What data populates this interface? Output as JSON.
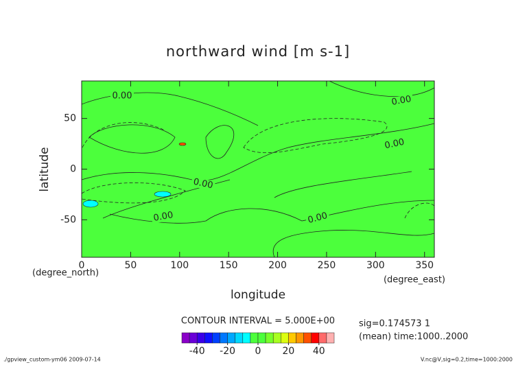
{
  "chart_data": {
    "type": "contour",
    "title": "northward wind [m s-1]",
    "x_label": "longitude",
    "y_label": "latitude",
    "x_unit": "(degree_east)",
    "y_unit": "(degree_north)",
    "xlim": [
      0,
      360
    ],
    "ylim": [
      -87,
      87
    ],
    "xticks": [
      0,
      50,
      100,
      150,
      200,
      250,
      300,
      350
    ],
    "yticks": [
      -50,
      0,
      50
    ],
    "contour_labels": [
      "0.00",
      "0.00",
      "0.00",
      "0.00",
      "0.00",
      "0.00"
    ],
    "contour_interval_text": "CONTOUR INTERVAL = 5.000E+00",
    "notes": [
      "sig=0.174573 1",
      "(mean) time:1000..2000"
    ],
    "footer_left": "./gpview_custom-ym06  2009-07-14",
    "footer_right": "V.nc@V,sig=0.2,time=1000:2000",
    "colorbar": {
      "levels": [
        -50,
        -45,
        -40,
        -35,
        -30,
        -25,
        -20,
        -15,
        -10,
        -5,
        0,
        5,
        10,
        15,
        20,
        25,
        30,
        35,
        40,
        45,
        50
      ],
      "colors": [
        "#8a00c8",
        "#6a00d8",
        "#3a00e8",
        "#1010ff",
        "#0040ff",
        "#0078ff",
        "#00a8ff",
        "#00d8ff",
        "#00ffff",
        "#4cff3c",
        "#4cff3c",
        "#78ff2a",
        "#a8ff20",
        "#dcff10",
        "#ffc800",
        "#ff9600",
        "#ff5000",
        "#ff0000",
        "#ff6a6a",
        "#ffb0b0"
      ],
      "ticks": [
        -40,
        -20,
        0,
        20,
        40
      ]
    }
  }
}
